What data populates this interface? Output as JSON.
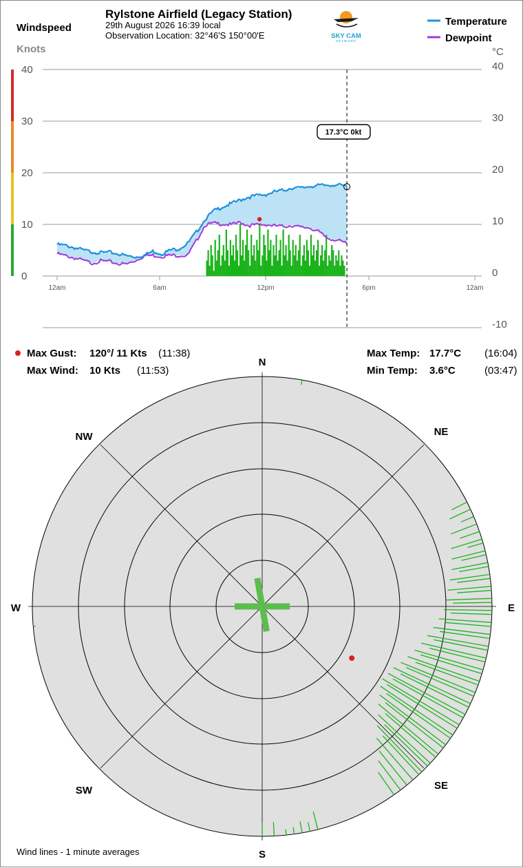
{
  "header": {
    "title": "Rylstone Airfield (Legacy Station)",
    "date_line": "29th August 2026  16:39 local",
    "location_line": "Observation Location: 32°46'S 150°00'E",
    "logo_text": "SKY CAM",
    "logo_subtext": "NETWORK"
  },
  "left_axis": {
    "title": "Windspeed",
    "unit": "Knots",
    "ticks": [
      "40",
      "30",
      "20",
      "10",
      "0"
    ]
  },
  "right_axis": {
    "unit": "°C",
    "ticks": [
      "40",
      "30",
      "20",
      "10",
      "0",
      "-10"
    ]
  },
  "legend": {
    "temperature_label": "Temperature",
    "dewpoint_label": "Dewpoint",
    "temperature_color": "#1e90dc",
    "dewpoint_color": "#a33ad6"
  },
  "cursor_label": "17.3°C  0kt",
  "chart_data": {
    "type": "line",
    "x_tick_labels": [
      "12am",
      "6am",
      "12pm",
      "6pm",
      "12am"
    ],
    "x_ticks_hours": [
      0,
      6,
      12,
      18,
      24
    ],
    "ylim_knots": [
      0,
      40
    ],
    "ylim_celsius": [
      -10,
      40
    ],
    "cursor_hour": 16.65,
    "temperature_series": {
      "name": "Temperature",
      "hours": [
        0,
        0.5,
        1,
        1.5,
        2,
        2.5,
        3,
        3.5,
        4,
        4.5,
        5,
        5.5,
        6,
        6.5,
        7,
        7.5,
        8,
        8.5,
        9,
        9.5,
        10,
        10.5,
        11,
        11.5,
        12,
        12.5,
        13,
        13.5,
        14,
        14.5,
        15,
        15.5,
        16,
        16.65
      ],
      "values": [
        6.1,
        5.9,
        5.5,
        5.0,
        4.7,
        4.5,
        4.6,
        4.3,
        3.9,
        3.7,
        4.0,
        4.8,
        4.3,
        5.0,
        5.3,
        6.3,
        8.5,
        11.0,
        12.6,
        13.4,
        14.0,
        14.7,
        15.3,
        15.6,
        15.8,
        16.3,
        16.6,
        17.1,
        17.0,
        17.4,
        17.5,
        17.6,
        17.7,
        17.3
      ]
    },
    "dewpoint_series": {
      "name": "Dewpoint",
      "hours": [
        0,
        0.5,
        1,
        1.5,
        2,
        2.5,
        3,
        3.5,
        4,
        4.5,
        5,
        5.5,
        6,
        6.5,
        7,
        7.5,
        8,
        8.5,
        9,
        9.5,
        10,
        10.5,
        11,
        11.5,
        12,
        12.5,
        13,
        13.5,
        14,
        14.5,
        15,
        15.5,
        16,
        16.65
      ],
      "values": [
        4.3,
        3.9,
        3.5,
        3.0,
        2.5,
        2.9,
        2.8,
        2.4,
        2.3,
        3.0,
        3.9,
        4.0,
        3.8,
        4.0,
        4.0,
        4.0,
        6.8,
        9.9,
        10.2,
        10.1,
        9.9,
        10.4,
        9.8,
        9.9,
        10.0,
        9.7,
        9.6,
        9.8,
        9.4,
        9.4,
        8.6,
        7.4,
        7.0,
        6.3
      ]
    },
    "max_gust_marker": {
      "hour": 11.63,
      "knots": 11
    },
    "wind_bars_knots": [
      3,
      5,
      2,
      6,
      4,
      1,
      7,
      3,
      5,
      8,
      2,
      4,
      6,
      3,
      9,
      5,
      2,
      7,
      4,
      6,
      3,
      8,
      5,
      2,
      10,
      4,
      7,
      3,
      6,
      9,
      5,
      2,
      8,
      4,
      6,
      3,
      7,
      5,
      10,
      2,
      4,
      8,
      6,
      3,
      9,
      5,
      7,
      2,
      6,
      4,
      8,
      3,
      5,
      7,
      2,
      9,
      4,
      6,
      3,
      8,
      5,
      2,
      7,
      4,
      6,
      3,
      5,
      8,
      2,
      4,
      6,
      3,
      7,
      5,
      2,
      8,
      4,
      6,
      3,
      5,
      7,
      2,
      4,
      6,
      3,
      5,
      8,
      2,
      4,
      3,
      6,
      5,
      2,
      4,
      3,
      5,
      2,
      4,
      3,
      2
    ],
    "wind_bars_start_hour": 8.6,
    "wind_bars_end_hour": 16.5,
    "wind_rose": {
      "max_knots": 20,
      "ring_step_knots": 4,
      "mean_bar_vectors": [
        {
          "bearing": 350,
          "knots": 2.5
        },
        {
          "bearing": 170,
          "knots": 2.2
        },
        {
          "bearing": 270,
          "knots": 2.4
        },
        {
          "bearing": 90,
          "knots": 2.4
        }
      ],
      "gust_marker": {
        "bearing": 120,
        "knots": 11
      },
      "spokes": [
        {
          "bearing": 10,
          "knots": 0.4
        },
        {
          "bearing": 63,
          "knots": 1.5
        },
        {
          "bearing": 65,
          "knots": 2.0
        },
        {
          "bearing": 67,
          "knots": 1.2
        },
        {
          "bearing": 69,
          "knots": 2.4
        },
        {
          "bearing": 71,
          "knots": 1.8
        },
        {
          "bearing": 73,
          "knots": 2.8
        },
        {
          "bearing": 74,
          "knots": 1.4
        },
        {
          "bearing": 76,
          "knots": 3.0
        },
        {
          "bearing": 77,
          "knots": 2.2
        },
        {
          "bearing": 79,
          "knots": 3.2
        },
        {
          "bearing": 80,
          "knots": 2.6
        },
        {
          "bearing": 82,
          "knots": 3.5
        },
        {
          "bearing": 83,
          "knots": 2.9
        },
        {
          "bearing": 85,
          "knots": 3.8
        },
        {
          "bearing": 86,
          "knots": 3.0
        },
        {
          "bearing": 88,
          "knots": 4.0
        },
        {
          "bearing": 89,
          "knots": 3.4
        },
        {
          "bearing": 91,
          "knots": 4.2
        },
        {
          "bearing": 92,
          "knots": 3.6
        },
        {
          "bearing": 94,
          "knots": 4.6
        },
        {
          "bearing": 95,
          "knots": 4.0
        },
        {
          "bearing": 97,
          "knots": 5.0
        },
        {
          "bearing": 98,
          "knots": 4.4
        },
        {
          "bearing": 100,
          "knots": 5.4
        },
        {
          "bearing": 101,
          "knots": 4.8
        },
        {
          "bearing": 103,
          "knots": 5.8
        },
        {
          "bearing": 104,
          "knots": 5.0
        },
        {
          "bearing": 106,
          "knots": 6.2
        },
        {
          "bearing": 107,
          "knots": 5.6
        },
        {
          "bearing": 109,
          "knots": 6.6
        },
        {
          "bearing": 110,
          "knots": 5.8
        },
        {
          "bearing": 112,
          "knots": 7.0
        },
        {
          "bearing": 113,
          "knots": 6.4
        },
        {
          "bearing": 115,
          "knots": 7.4
        },
        {
          "bearing": 116,
          "knots": 6.6
        },
        {
          "bearing": 118,
          "knots": 7.6
        },
        {
          "bearing": 119,
          "knots": 7.0
        },
        {
          "bearing": 121,
          "knots": 7.8
        },
        {
          "bearing": 122,
          "knots": 7.2
        },
        {
          "bearing": 124,
          "knots": 7.6
        },
        {
          "bearing": 125,
          "knots": 6.8
        },
        {
          "bearing": 127,
          "knots": 7.2
        },
        {
          "bearing": 128,
          "knots": 6.4
        },
        {
          "bearing": 130,
          "knots": 6.8
        },
        {
          "bearing": 131,
          "knots": 5.8
        },
        {
          "bearing": 133,
          "knots": 6.2
        },
        {
          "bearing": 134,
          "knots": 5.2
        },
        {
          "bearing": 136,
          "knots": 5.6
        },
        {
          "bearing": 137,
          "knots": 4.6
        },
        {
          "bearing": 139,
          "knots": 4.8
        },
        {
          "bearing": 141,
          "knots": 3.8
        },
        {
          "bearing": 143,
          "knots": 3.2
        },
        {
          "bearing": 145,
          "knots": 2.4
        },
        {
          "bearing": 166,
          "knots": 1.6
        },
        {
          "bearing": 168,
          "knots": 0.8
        },
        {
          "bearing": 170,
          "knots": 1.0
        },
        {
          "bearing": 172,
          "knots": 0.6
        },
        {
          "bearing": 174,
          "knots": 0.5
        },
        {
          "bearing": 177,
          "knots": 1.2
        },
        {
          "bearing": 180,
          "knots": 1.2
        },
        {
          "bearing": 265,
          "knots": 0.2
        }
      ]
    }
  },
  "stats": {
    "max_gust_label": "Max Gust:",
    "max_gust_value": "120°/  11 Kts",
    "max_gust_time": "(11:38)",
    "max_wind_label": "Max Wind:",
    "max_wind_value": "10 Kts",
    "max_wind_time": "(11:53)",
    "max_temp_label": "Max Temp:",
    "max_temp_value": "17.7°C",
    "max_temp_time": "(16:04)",
    "min_temp_label": "Min Temp:",
    "min_temp_value": "3.6°C",
    "min_temp_time": "(03:47)"
  },
  "compass": {
    "n": "N",
    "ne": "NE",
    "e": "E",
    "se": "SE",
    "s": "S",
    "sw": "SW",
    "w": "W",
    "nw": "NW"
  },
  "footer_note": "Wind lines - 1 minute averages",
  "colors": {
    "grid": "#999999",
    "rose_fill": "#e0e0e0",
    "wind_green": "#1bb31b",
    "mean_bar_green": "#5cbd4f",
    "gust_red": "#d62020",
    "temp_fill": "#bde2f6",
    "scale_red": "#d42a2a",
    "scale_orange": "#e88a2a",
    "scale_yellow": "#e8c21e",
    "scale_green": "#2aa63a"
  }
}
